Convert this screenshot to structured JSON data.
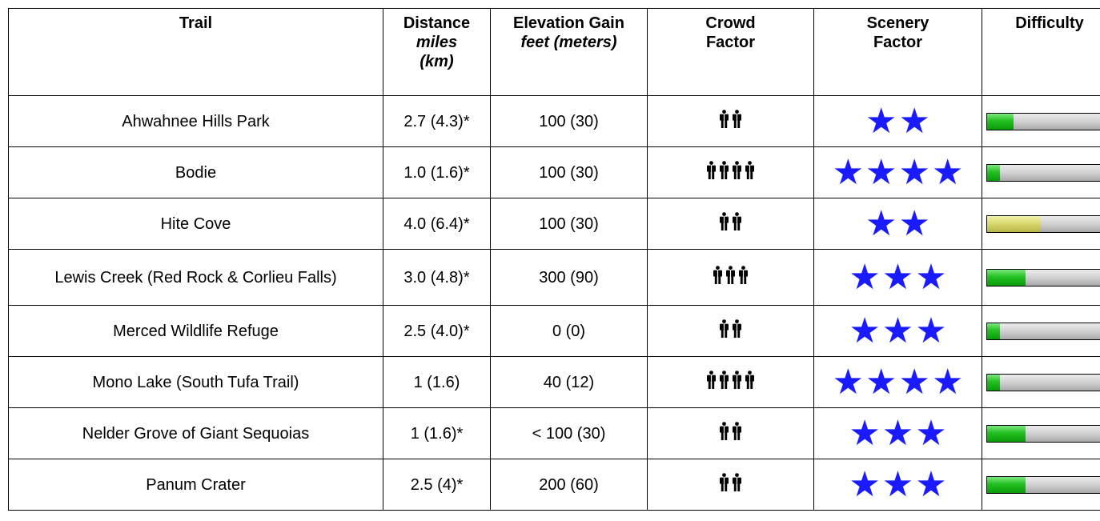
{
  "headers": {
    "trail": "Trail",
    "distance": "Distance",
    "distance_unit1": "miles",
    "distance_unit2": "(km)",
    "elevation": "Elevation Gain",
    "elevation_unit": "feet (meters)",
    "crowd1": "Crowd",
    "crowd2": "Factor",
    "scenery1": "Scenery",
    "scenery2": "Factor",
    "difficulty": "Difficulty"
  },
  "colors": {
    "star": "#1a1aff",
    "difficulty_green": "#22c022",
    "difficulty_yellow": "#d6d66c",
    "difficulty_track": "#d0d0d0"
  },
  "rows": [
    {
      "trail": "Ahwahnee Hills Park",
      "distance": "2.7 (4.3)*",
      "elevation": "100 (30)",
      "crowd": 2,
      "scenery": 2,
      "difficulty": 0.21,
      "difficulty_color": "green"
    },
    {
      "trail": "Bodie",
      "distance": "1.0 (1.6)*",
      "elevation": "100 (30)",
      "crowd": 4,
      "scenery": 4,
      "difficulty": 0.1,
      "difficulty_color": "green"
    },
    {
      "trail": "Hite Cove",
      "distance": "4.0 (6.4)*",
      "elevation": "100 (30)",
      "crowd": 2,
      "scenery": 2,
      "difficulty": 0.43,
      "difficulty_color": "yellow"
    },
    {
      "trail": "Lewis Creek (Red Rock & Corlieu Falls)",
      "distance": "3.0 (4.8)*",
      "elevation": "300 (90)",
      "crowd": 3,
      "scenery": 3,
      "difficulty": 0.31,
      "difficulty_color": "green"
    },
    {
      "trail": "Merced Wildlife Refuge",
      "distance": "2.5 (4.0)*",
      "elevation": "0 (0)",
      "crowd": 2,
      "scenery": 3,
      "difficulty": 0.1,
      "difficulty_color": "green"
    },
    {
      "trail": "Mono Lake (South Tufa Trail)",
      "distance": "1 (1.6)",
      "elevation": "40 (12)",
      "crowd": 4,
      "scenery": 4,
      "difficulty": 0.1,
      "difficulty_color": "green"
    },
    {
      "trail": "Nelder Grove of Giant Sequoias",
      "distance": "1 (1.6)*",
      "elevation": "< 100 (30)",
      "crowd": 2,
      "scenery": 3,
      "difficulty": 0.31,
      "difficulty_color": "green"
    },
    {
      "trail": "Panum Crater",
      "distance": "2.5 (4)*",
      "elevation": "200 (60)",
      "crowd": 2,
      "scenery": 3,
      "difficulty": 0.31,
      "difficulty_color": "green"
    }
  ]
}
